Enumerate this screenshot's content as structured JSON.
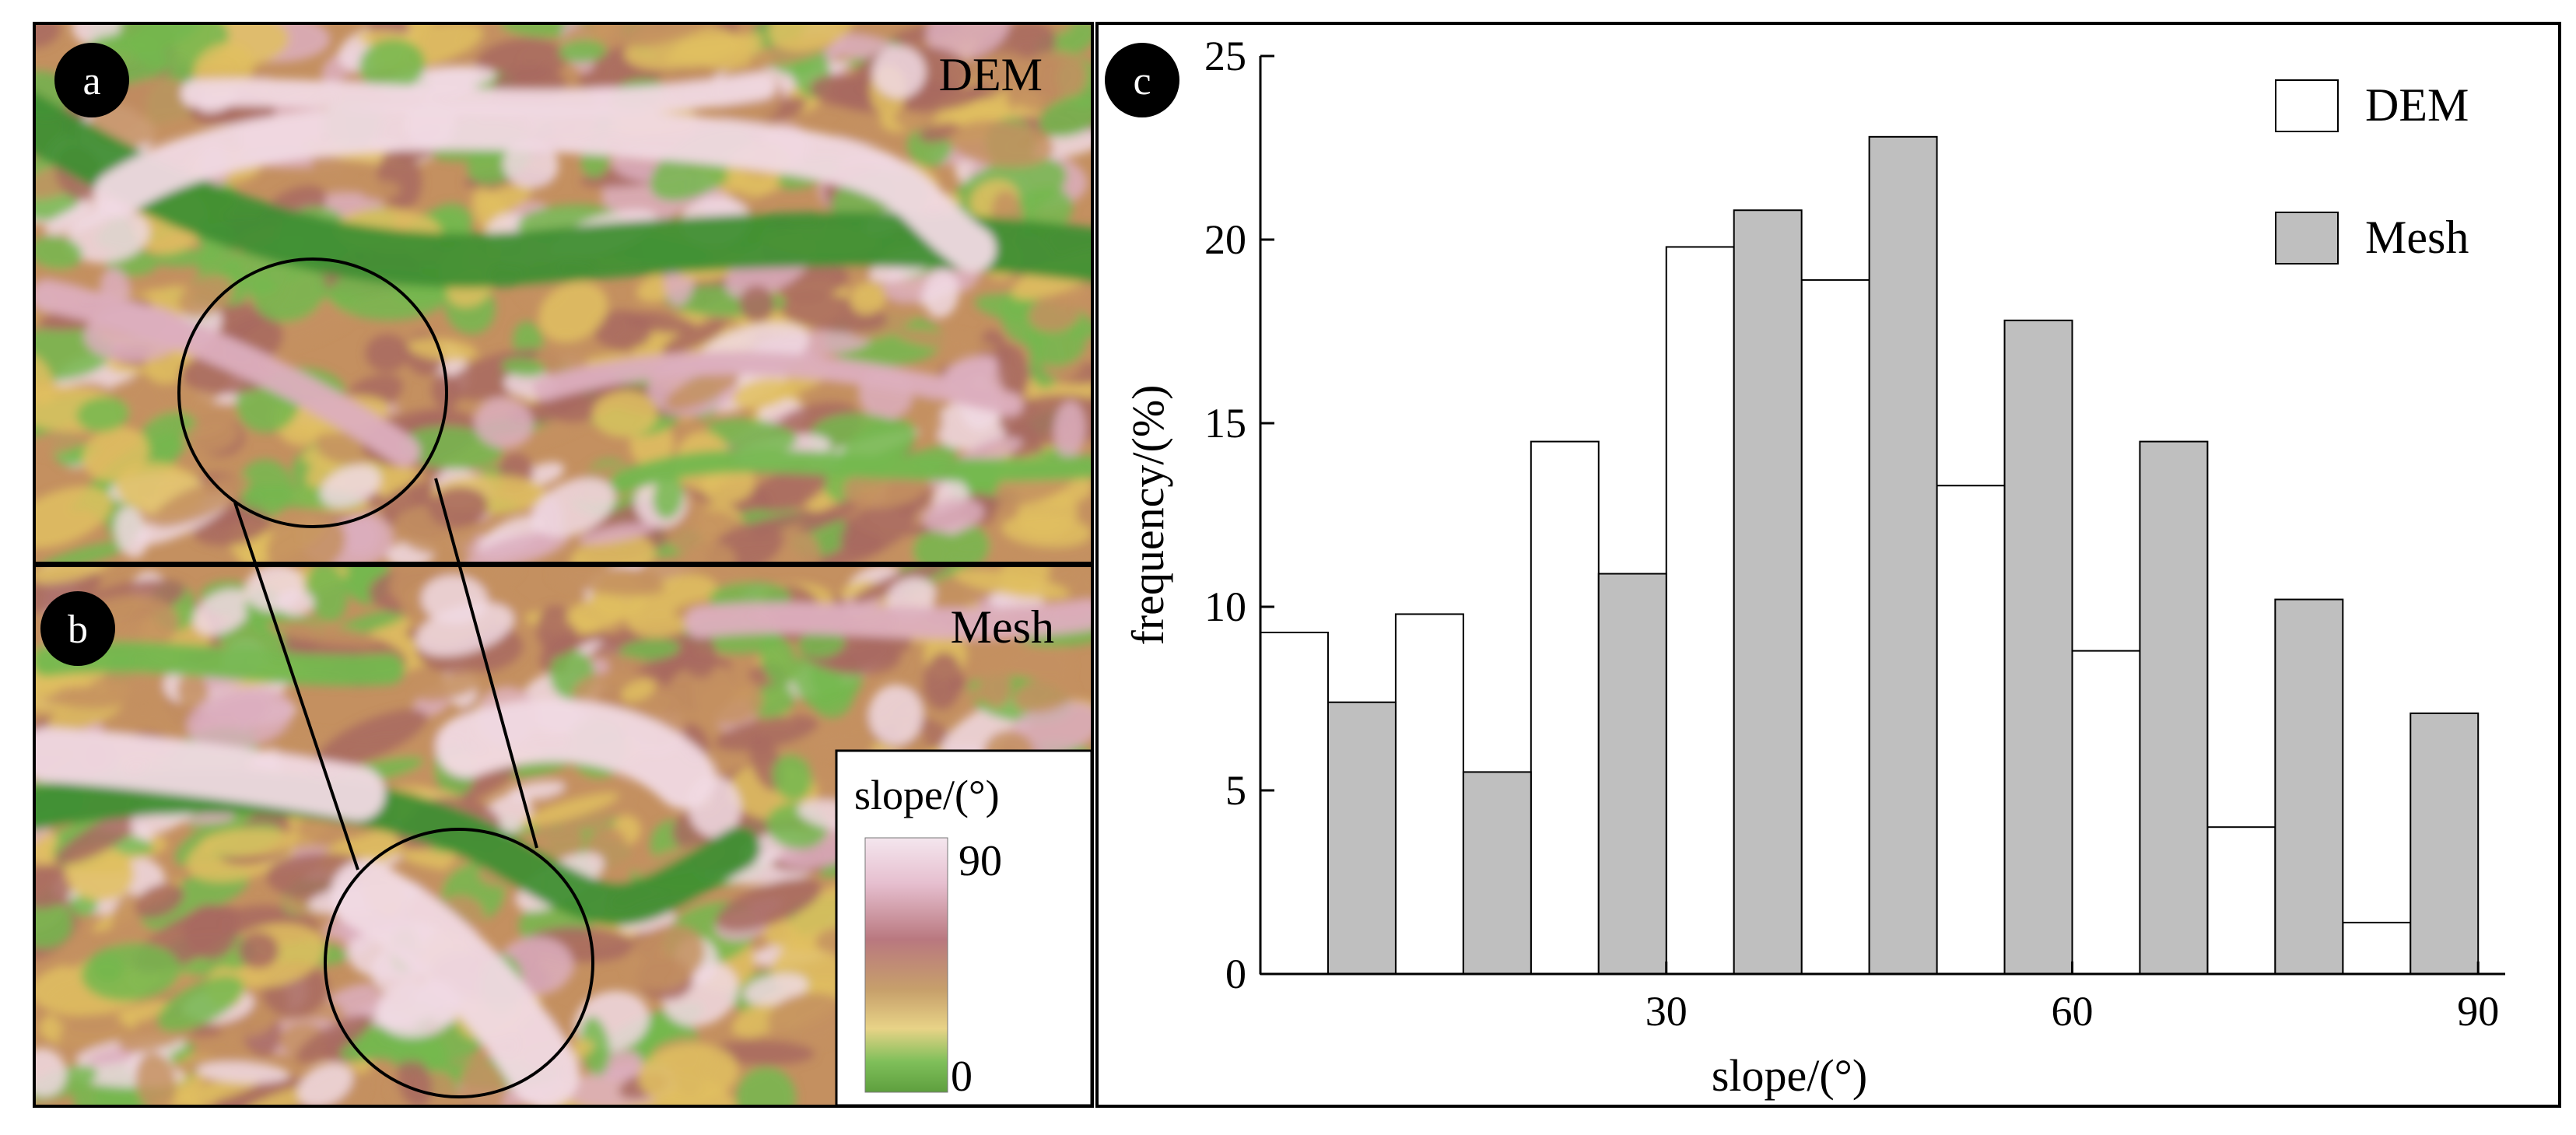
{
  "panels": {
    "a": {
      "label": "a",
      "title": "DEM"
    },
    "b": {
      "label": "b",
      "title": "Mesh"
    },
    "c": {
      "label": "c"
    }
  },
  "colorbar": {
    "title": "slope/(°)",
    "max_label": "90",
    "min_label": "0",
    "colors": [
      "#f4e6ee",
      "#e6bfcf",
      "#b9787f",
      "#c7a06b",
      "#e8d387",
      "#7fbf5a",
      "#5e9f3e"
    ]
  },
  "map_colors": {
    "green_dark": "#3f8f33",
    "green": "#74b84f",
    "yellow": "#e0c060",
    "tan": "#c49060",
    "brown": "#a86a60",
    "pink": "#dcaebe",
    "pink_light": "#f0d9e3"
  },
  "chart_data": {
    "type": "bar",
    "xlabel": "slope/(°)",
    "ylabel": "frequency/(%)",
    "xlim": [
      0,
      92
    ],
    "ylim": [
      0,
      25
    ],
    "xticks": [
      30,
      60,
      90
    ],
    "yticks": [
      0,
      5,
      10,
      15,
      20,
      25
    ],
    "legend_position": "top-right",
    "bin_width": 10,
    "series": [
      {
        "name": "DEM",
        "fill": "#ffffff",
        "bins": [
          [
            0,
            9.3
          ],
          [
            10,
            9.8
          ],
          [
            20,
            14.5
          ],
          [
            30,
            19.8
          ],
          [
            40,
            18.9
          ],
          [
            50,
            13.3
          ],
          [
            60,
            8.8
          ],
          [
            70,
            4.0
          ],
          [
            80,
            1.4
          ]
        ]
      },
      {
        "name": "Mesh",
        "fill": "#bfbfbf",
        "bins": [
          [
            0,
            7.4
          ],
          [
            10,
            5.5
          ],
          [
            20,
            10.9
          ],
          [
            30,
            20.8
          ],
          [
            40,
            22.8
          ],
          [
            50,
            17.8
          ],
          [
            60,
            14.5
          ],
          [
            70,
            10.2
          ],
          [
            80,
            7.1
          ]
        ]
      }
    ]
  }
}
